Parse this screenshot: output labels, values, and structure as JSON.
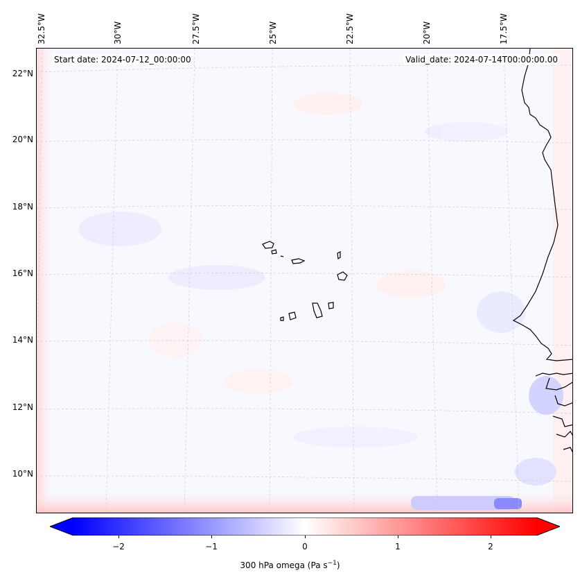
{
  "map": {
    "start_date": "Start date: 2024-07-12_00:00:00",
    "valid_date": "Valid_date: 2024-07-14T00:00:00.00",
    "lon_labels": [
      "32.5°W",
      "30°W",
      "27.5°W",
      "25°W",
      "22.5°W",
      "20°W",
      "17.5°W"
    ],
    "lat_labels": [
      "22°N",
      "20°N",
      "18°N",
      "16°N",
      "14°N",
      "12°N",
      "10°N"
    ]
  },
  "colorbar": {
    "ticks": [
      "−2",
      "−1",
      "0",
      "1",
      "2"
    ],
    "label": "300 hPa omega (Pa s",
    "label_sup": "−1",
    "label_end": ")",
    "colors": {
      "min": "#0000ff",
      "mid": "#ffffff",
      "max": "#ff0000"
    }
  }
}
